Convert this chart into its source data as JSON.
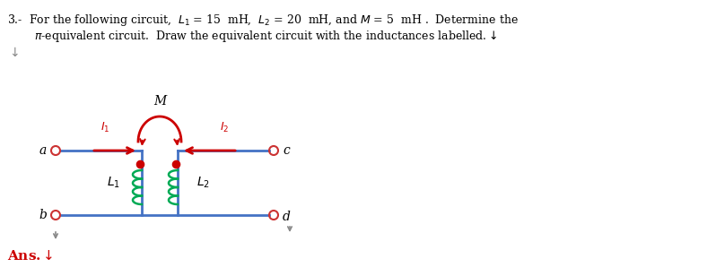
{
  "figsize": [
    7.88,
    3.08
  ],
  "dpi": 100,
  "bg_color": "#ffffff",
  "wire_color": "#4472c4",
  "inductor_color": "#00aa55",
  "arc_color": "#cc0000",
  "dot_color": "#cc0000",
  "terminal_color": "#cc3333",
  "ans_color": "#cc0000",
  "text_color": "#000000",
  "gray_color": "#888888",
  "line1": "3.-  For the following circuit,  $L_1$ = 15  mH,  $L_2$ = 20  mH, and $M$ = 5  mH .  Determine the",
  "line2": "$\\pi$-equivalent circuit.  Draw the equivalent circuit with the inductances labelled.$\\downarrow$",
  "ans_text": "Ans.$\\downarrow$",
  "term_a": "a",
  "term_b": "b",
  "term_c": "c",
  "term_d": "d",
  "label_L1": "$L_1$",
  "label_L2": "$L_2$",
  "label_M": "M",
  "label_I1": "$I_1$",
  "label_I2": "$I_2$"
}
